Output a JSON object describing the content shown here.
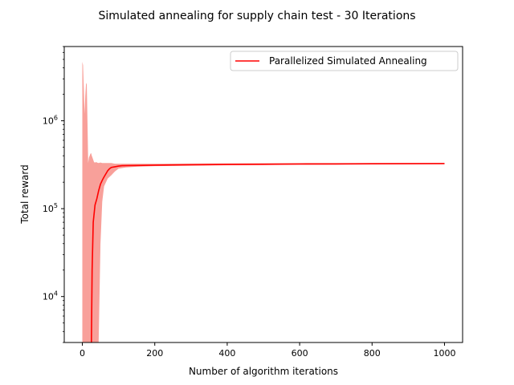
{
  "chart_data": {
    "type": "line",
    "title": "Simulated annealing for supply chain test - 30 Iterations",
    "xlabel": "Number of algorithm iterations",
    "ylabel": "Total reward",
    "xlim": [
      -50,
      1050
    ],
    "ylim": [
      3000,
      7000000
    ],
    "yscale": "log",
    "grid": false,
    "legend_position": "top-right",
    "x_ticks": [
      0,
      200,
      400,
      600,
      800,
      1000
    ],
    "x_tick_labels": [
      "0",
      "200",
      "400",
      "600",
      "800",
      "1000"
    ],
    "y_ticks": [
      10000,
      100000,
      1000000
    ],
    "y_tick_labels": [
      {
        "base": "10",
        "exp": "4"
      },
      {
        "base": "10",
        "exp": "5"
      },
      {
        "base": "10",
        "exp": "6"
      }
    ],
    "series": [
      {
        "name": "Parallelized Simulated Annealing",
        "color": "#ff0000",
        "band_color": "#f8a09a",
        "x": [
          25,
          27,
          30,
          35,
          40,
          45,
          50,
          55,
          60,
          65,
          70,
          75,
          80,
          90,
          100,
          110,
          150,
          200,
          300,
          400,
          500,
          600,
          700,
          800,
          900,
          1000
        ],
        "mean": [
          3000,
          20000,
          70000,
          110000,
          130000,
          160000,
          190000,
          210000,
          230000,
          250000,
          270000,
          285000,
          295000,
          300000,
          305000,
          308000,
          310000,
          313000,
          316000,
          318000,
          320000,
          322000,
          323000,
          324000,
          325000,
          326000
        ],
        "band_x": [
          0,
          2,
          4,
          6,
          8,
          10,
          12,
          14,
          16,
          18,
          20,
          22,
          24,
          26,
          28,
          30,
          32,
          34,
          36,
          38,
          40,
          45,
          50,
          55,
          60,
          70,
          80,
          90,
          100,
          120,
          150,
          200,
          300,
          400,
          600,
          800,
          1000
        ],
        "band_upper": [
          4700000,
          4300000,
          2400000,
          1200000,
          1900000,
          2600000,
          2700000,
          1000000,
          330000,
          380000,
          400000,
          420000,
          430000,
          400000,
          380000,
          360000,
          340000,
          335000,
          335000,
          340000,
          335000,
          330000,
          335000,
          330000,
          330000,
          330000,
          330000,
          325000,
          325000,
          325000,
          325000,
          325000,
          326000,
          328000,
          330000,
          330000,
          330000
        ],
        "band_lower": [
          3000,
          3000,
          3000,
          3000,
          3000,
          3000,
          3000,
          3000,
          3000,
          3000,
          3000,
          3000,
          3000,
          3000,
          3000,
          3000,
          3000,
          3000,
          3000,
          3000,
          3000,
          3000,
          40000,
          120000,
          180000,
          220000,
          240000,
          265000,
          285000,
          295000,
          300000,
          305000,
          308000,
          312000,
          316000,
          320000,
          322000
        ]
      }
    ]
  }
}
